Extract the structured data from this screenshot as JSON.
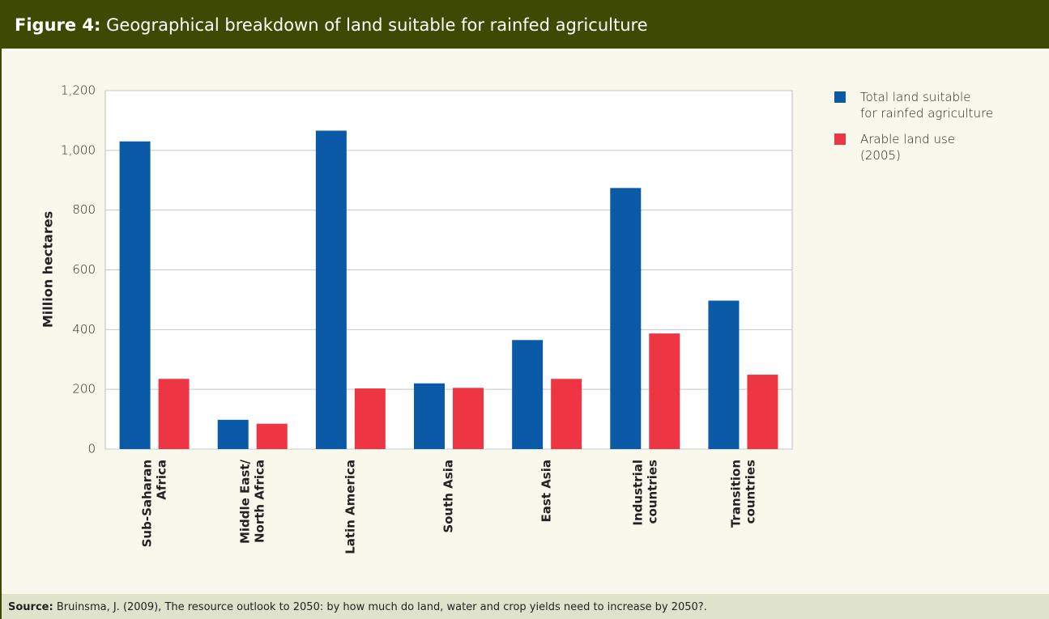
{
  "chart_data": {
    "type": "bar",
    "title_label": "Figure 4:",
    "title": "Geographical breakdown of land suitable for rainfed agriculture",
    "y_label": "Million hectares",
    "categories": [
      "Sub-Saharan\nAfrica",
      "Middle East/\nNorth Africa",
      "Latin America",
      "South Asia",
      "East Asia",
      "Industrial\ncountries",
      "Transition\ncountries"
    ],
    "series": [
      {
        "name": "Total land suitable\nfor rainfed agriculture",
        "color": "#0a5aa8",
        "values": [
          1030,
          98,
          1066,
          220,
          365,
          874,
          497
        ]
      },
      {
        "name": "Arable land use\n(2005)",
        "color": "#ee3544",
        "values": [
          235,
          85,
          203,
          205,
          235,
          387,
          249
        ]
      }
    ],
    "ylim": [
      0,
      1200
    ],
    "yticks": [
      0,
      200,
      400,
      600,
      800,
      {
        "value": 1000,
        "label": "1,000"
      },
      {
        "value": 1200,
        "label": "1,200"
      }
    ],
    "grid": true,
    "source_label": "Source:",
    "source": "Bruinsma, J. (2009), The resource outlook to 2050: by how much do land, water and crop yields need to increase by 2050?."
  }
}
